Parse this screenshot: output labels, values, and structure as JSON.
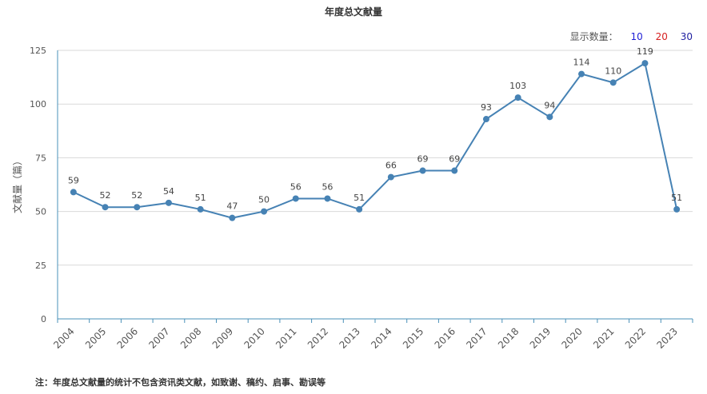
{
  "title": "年度总文献量",
  "selector": {
    "label": "显示数量：",
    "options": [
      {
        "label": "10",
        "color": "#1f1fd6"
      },
      {
        "label": "20",
        "color": "#d62020"
      },
      {
        "label": "30",
        "color": "#1f1fa0"
      }
    ]
  },
  "footnote": "注：年度总文献量的统计不包含资讯类文献，如致谢、稿约、启事、勘误等",
  "chart_data": {
    "type": "line",
    "title": "年度总文献量",
    "xlabel": "",
    "ylabel": "文献量（篇）",
    "ylim": [
      0,
      125
    ],
    "yticks": [
      0,
      25,
      50,
      75,
      100,
      125
    ],
    "grid": true,
    "line_color": "#4682b4",
    "x": [
      "2004",
      "2005",
      "2006",
      "2007",
      "2008",
      "2009",
      "2010",
      "2011",
      "2012",
      "2013",
      "2014",
      "2015",
      "2016",
      "2017",
      "2018",
      "2019",
      "2020",
      "2021",
      "2022",
      "2023"
    ],
    "series": [
      {
        "values": [
          59,
          52,
          52,
          54,
          51,
          47,
          50,
          56,
          56,
          51,
          66,
          69,
          69,
          93,
          103,
          94,
          114,
          110,
          119,
          51
        ]
      }
    ]
  }
}
